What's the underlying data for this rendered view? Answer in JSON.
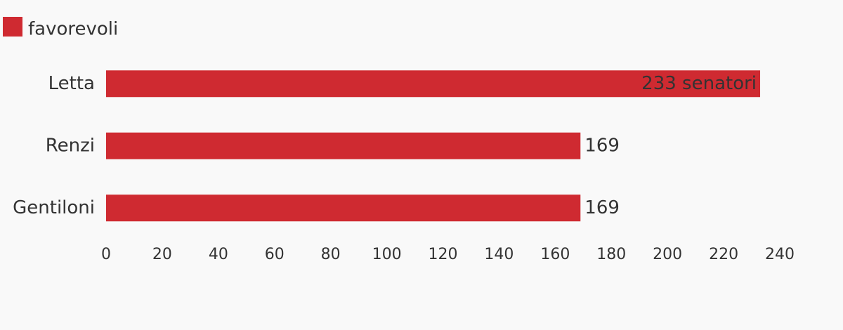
{
  "chart_data": {
    "type": "bar",
    "categories": [
      "Letta",
      "Renzi",
      "Gentiloni"
    ],
    "series": [
      {
        "name": "favorevoli",
        "color": "#cf2a31",
        "values": [
          233,
          169,
          169
        ],
        "value_labels": [
          "233 senatori",
          "169",
          "169"
        ]
      }
    ],
    "xlim": [
      0,
      240
    ],
    "xticks": [
      0,
      20,
      40,
      60,
      80,
      100,
      120,
      140,
      160,
      180,
      200,
      220,
      240
    ]
  }
}
